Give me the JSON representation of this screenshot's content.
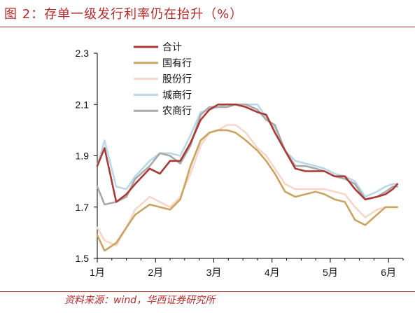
{
  "figure": {
    "title": "图 2：存单一级发行利率仍在抬升（%）",
    "source": "资料来源：wind，华西证券研究所"
  },
  "chart_data": {
    "type": "line",
    "title": "",
    "xlabel": "",
    "ylabel": "",
    "ylim": [
      1.5,
      2.3
    ],
    "yticks": [
      "2.3",
      "2.1",
      "1.9",
      "1.7",
      "1.5"
    ],
    "xticks": [
      "1月",
      "2月",
      "3月",
      "4月",
      "5月",
      "6月"
    ],
    "xtick_positions": [
      0,
      4,
      8,
      12,
      16,
      20
    ],
    "x": [
      0,
      0.5,
      1.3,
      2,
      2.6,
      3.6,
      4.3,
      5,
      5.7,
      6.4,
      7.1,
      7.7,
      8.3,
      8.9,
      9.5,
      10.2,
      11,
      11.6,
      12.2,
      12.9,
      13.6,
      14.3,
      15,
      15.6,
      16.3,
      17,
      17.7,
      18.4,
      19.2,
      19.8,
      20.3,
      20.6
    ],
    "legend_position": "top-left",
    "grid": false,
    "series": [
      {
        "name": "合计",
        "color": "#a93b36",
        "values": [
          1.86,
          1.93,
          1.72,
          1.75,
          1.79,
          1.85,
          1.83,
          1.88,
          1.88,
          1.95,
          2.04,
          2.08,
          2.1,
          2.1,
          2.1,
          2.09,
          2.07,
          2.06,
          1.99,
          1.92,
          1.85,
          1.84,
          1.84,
          1.84,
          1.82,
          1.82,
          1.77,
          1.73,
          1.74,
          1.75,
          1.77,
          1.79
        ]
      },
      {
        "name": "国有行",
        "color": "#c9a561",
        "values": [
          1.59,
          1.53,
          1.56,
          1.62,
          1.67,
          1.71,
          1.7,
          1.69,
          1.73,
          1.86,
          1.96,
          1.99,
          2.0,
          2.0,
          1.99,
          1.96,
          1.92,
          1.88,
          1.83,
          1.76,
          1.74,
          1.75,
          1.76,
          1.75,
          1.73,
          1.72,
          1.65,
          1.63,
          1.67,
          1.7,
          1.7,
          1.7
        ]
      },
      {
        "name": "股份行",
        "color": "#f7d7c8",
        "values": [
          1.62,
          1.57,
          1.55,
          1.62,
          1.69,
          1.74,
          1.72,
          1.7,
          1.74,
          1.83,
          1.94,
          1.99,
          2.0,
          2.02,
          2.02,
          1.99,
          1.93,
          1.9,
          1.85,
          1.79,
          1.77,
          1.77,
          1.77,
          1.77,
          1.76,
          1.75,
          1.7,
          1.66,
          1.69,
          1.7,
          1.7,
          1.7
        ]
      },
      {
        "name": "城商行",
        "color": "#bcd8e8",
        "values": [
          1.86,
          1.96,
          1.78,
          1.77,
          1.82,
          1.88,
          1.91,
          1.91,
          1.9,
          1.98,
          2.07,
          2.08,
          2.09,
          2.1,
          2.1,
          2.1,
          2.1,
          2.05,
          2.01,
          1.92,
          1.88,
          1.87,
          1.86,
          1.85,
          1.83,
          1.82,
          1.8,
          1.74,
          1.76,
          1.78,
          1.79,
          1.79
        ]
      },
      {
        "name": "农商行",
        "color": "#a9a9a9",
        "values": [
          1.78,
          1.71,
          1.72,
          1.74,
          1.81,
          1.86,
          1.91,
          1.9,
          1.87,
          1.94,
          2.06,
          2.09,
          2.09,
          2.09,
          2.1,
          2.1,
          2.08,
          2.04,
          2.02,
          1.92,
          1.86,
          1.86,
          1.85,
          1.84,
          1.82,
          1.81,
          1.79,
          1.73,
          1.74,
          1.76,
          1.78,
          1.78
        ]
      }
    ]
  }
}
